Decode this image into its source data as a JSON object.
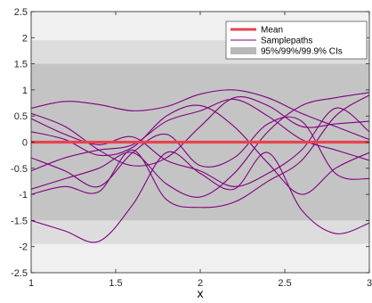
{
  "chart_data": {
    "type": "line",
    "title": "",
    "xlabel": "x",
    "ylabel": "",
    "xlim": [
      1,
      3
    ],
    "ylim": [
      -2.5,
      2.5
    ],
    "x_ticks": [
      1,
      1.5,
      2,
      2.5,
      3
    ],
    "x_tick_labels": [
      "1",
      "1.5",
      "2",
      "2.5",
      "3"
    ],
    "y_ticks": [
      -2.5,
      -2,
      -1.5,
      -1,
      -0.5,
      0,
      0.5,
      1,
      1.5,
      2,
      2.5
    ],
    "y_tick_labels": [
      "-2.5",
      "-2",
      "-1.5",
      "-1",
      "-0.5",
      "0",
      "0.5",
      "1",
      "1.5",
      "2",
      "2.5"
    ],
    "grid": false,
    "legend_position": "top-right",
    "legend": [
      "Mean",
      "Samplepaths",
      "95%/99%/99.9% CIs"
    ],
    "mean": {
      "name": "Mean",
      "color": "#e8434f",
      "x": [
        1,
        1.5,
        2,
        2.5,
        3
      ],
      "y": [
        0,
        0,
        0,
        0,
        0
      ]
    },
    "confidence_bands": [
      {
        "level": "99.9%",
        "lower": -2.5,
        "upper": 2.5,
        "color": "#f0f0f0"
      },
      {
        "level": "99%",
        "lower": -1.95,
        "upper": 1.95,
        "color": "#dddddd"
      },
      {
        "level": "95%",
        "lower": -1.5,
        "upper": 1.5,
        "color": "#c4c4c4"
      }
    ],
    "samplepaths_color": "#800080",
    "series": [
      {
        "x": [
          1,
          1.2,
          1.4,
          1.6,
          1.8,
          2.0,
          2.2,
          2.4,
          2.6,
          2.8,
          3.0
        ],
        "y": [
          0.65,
          0.78,
          0.72,
          0.6,
          0.68,
          0.92,
          1.0,
          0.85,
          0.55,
          0.3,
          0.05
        ]
      },
      {
        "x": [
          1,
          1.2,
          1.4,
          1.6,
          1.8,
          2.0,
          2.2,
          2.4,
          2.6,
          2.8,
          3.0
        ],
        "y": [
          -1.5,
          -1.7,
          -1.9,
          -1.2,
          -0.2,
          -0.6,
          -0.9,
          -0.2,
          -1.3,
          -1.75,
          -1.55
        ]
      },
      {
        "x": [
          1,
          1.2,
          1.4,
          1.6,
          1.8,
          2.0,
          2.2,
          2.4,
          2.6,
          2.8,
          3.0
        ],
        "y": [
          -0.55,
          -0.3,
          -0.15,
          -0.05,
          0.4,
          0.6,
          0.82,
          0.5,
          0.05,
          -0.15,
          -0.35
        ]
      },
      {
        "x": [
          1,
          1.2,
          1.4,
          1.6,
          1.8,
          2.0,
          2.2,
          2.4,
          2.6,
          2.8,
          3.0
        ],
        "y": [
          0.55,
          0.3,
          -0.15,
          -0.45,
          -0.3,
          0.3,
          0.85,
          0.7,
          0.3,
          0.35,
          0.4
        ]
      },
      {
        "x": [
          1,
          1.2,
          1.4,
          1.6,
          1.8,
          2.0,
          2.2,
          2.4,
          2.6,
          2.8,
          3.0
        ],
        "y": [
          -0.9,
          -0.7,
          -0.5,
          -0.2,
          -0.8,
          -1.05,
          -0.6,
          0.2,
          0.7,
          0.85,
          0.95
        ]
      },
      {
        "x": [
          1,
          1.2,
          1.4,
          1.6,
          1.8,
          2.0,
          2.2,
          2.4,
          2.6,
          2.8,
          3.0
        ],
        "y": [
          0.2,
          0.05,
          -0.25,
          -0.1,
          0.5,
          0.7,
          0.3,
          -0.4,
          -1.0,
          -0.5,
          -0.2
        ]
      },
      {
        "x": [
          1,
          1.2,
          1.4,
          1.6,
          1.8,
          2.0,
          2.2,
          2.4,
          2.6,
          2.8,
          3.0
        ],
        "y": [
          -0.3,
          -0.55,
          -0.85,
          -0.2,
          0.15,
          -0.45,
          -0.3,
          0.35,
          0.4,
          -0.6,
          -0.7
        ]
      },
      {
        "x": [
          1,
          1.2,
          1.4,
          1.6,
          1.8,
          2.0,
          2.2,
          2.4,
          2.6,
          2.8,
          3.0
        ],
        "y": [
          0.45,
          0.15,
          -0.05,
          0.1,
          -0.35,
          -0.55,
          -0.85,
          -0.6,
          -0.15,
          0.65,
          0.2
        ]
      },
      {
        "x": [
          1,
          1.2,
          1.4,
          1.6,
          1.8,
          2.0,
          2.2,
          2.4,
          2.6,
          2.8,
          3.0
        ],
        "y": [
          -1.0,
          -0.85,
          -0.95,
          -0.15,
          -1.1,
          -1.25,
          -1.15,
          -0.75,
          -0.35,
          0.5,
          0.9
        ]
      }
    ]
  }
}
